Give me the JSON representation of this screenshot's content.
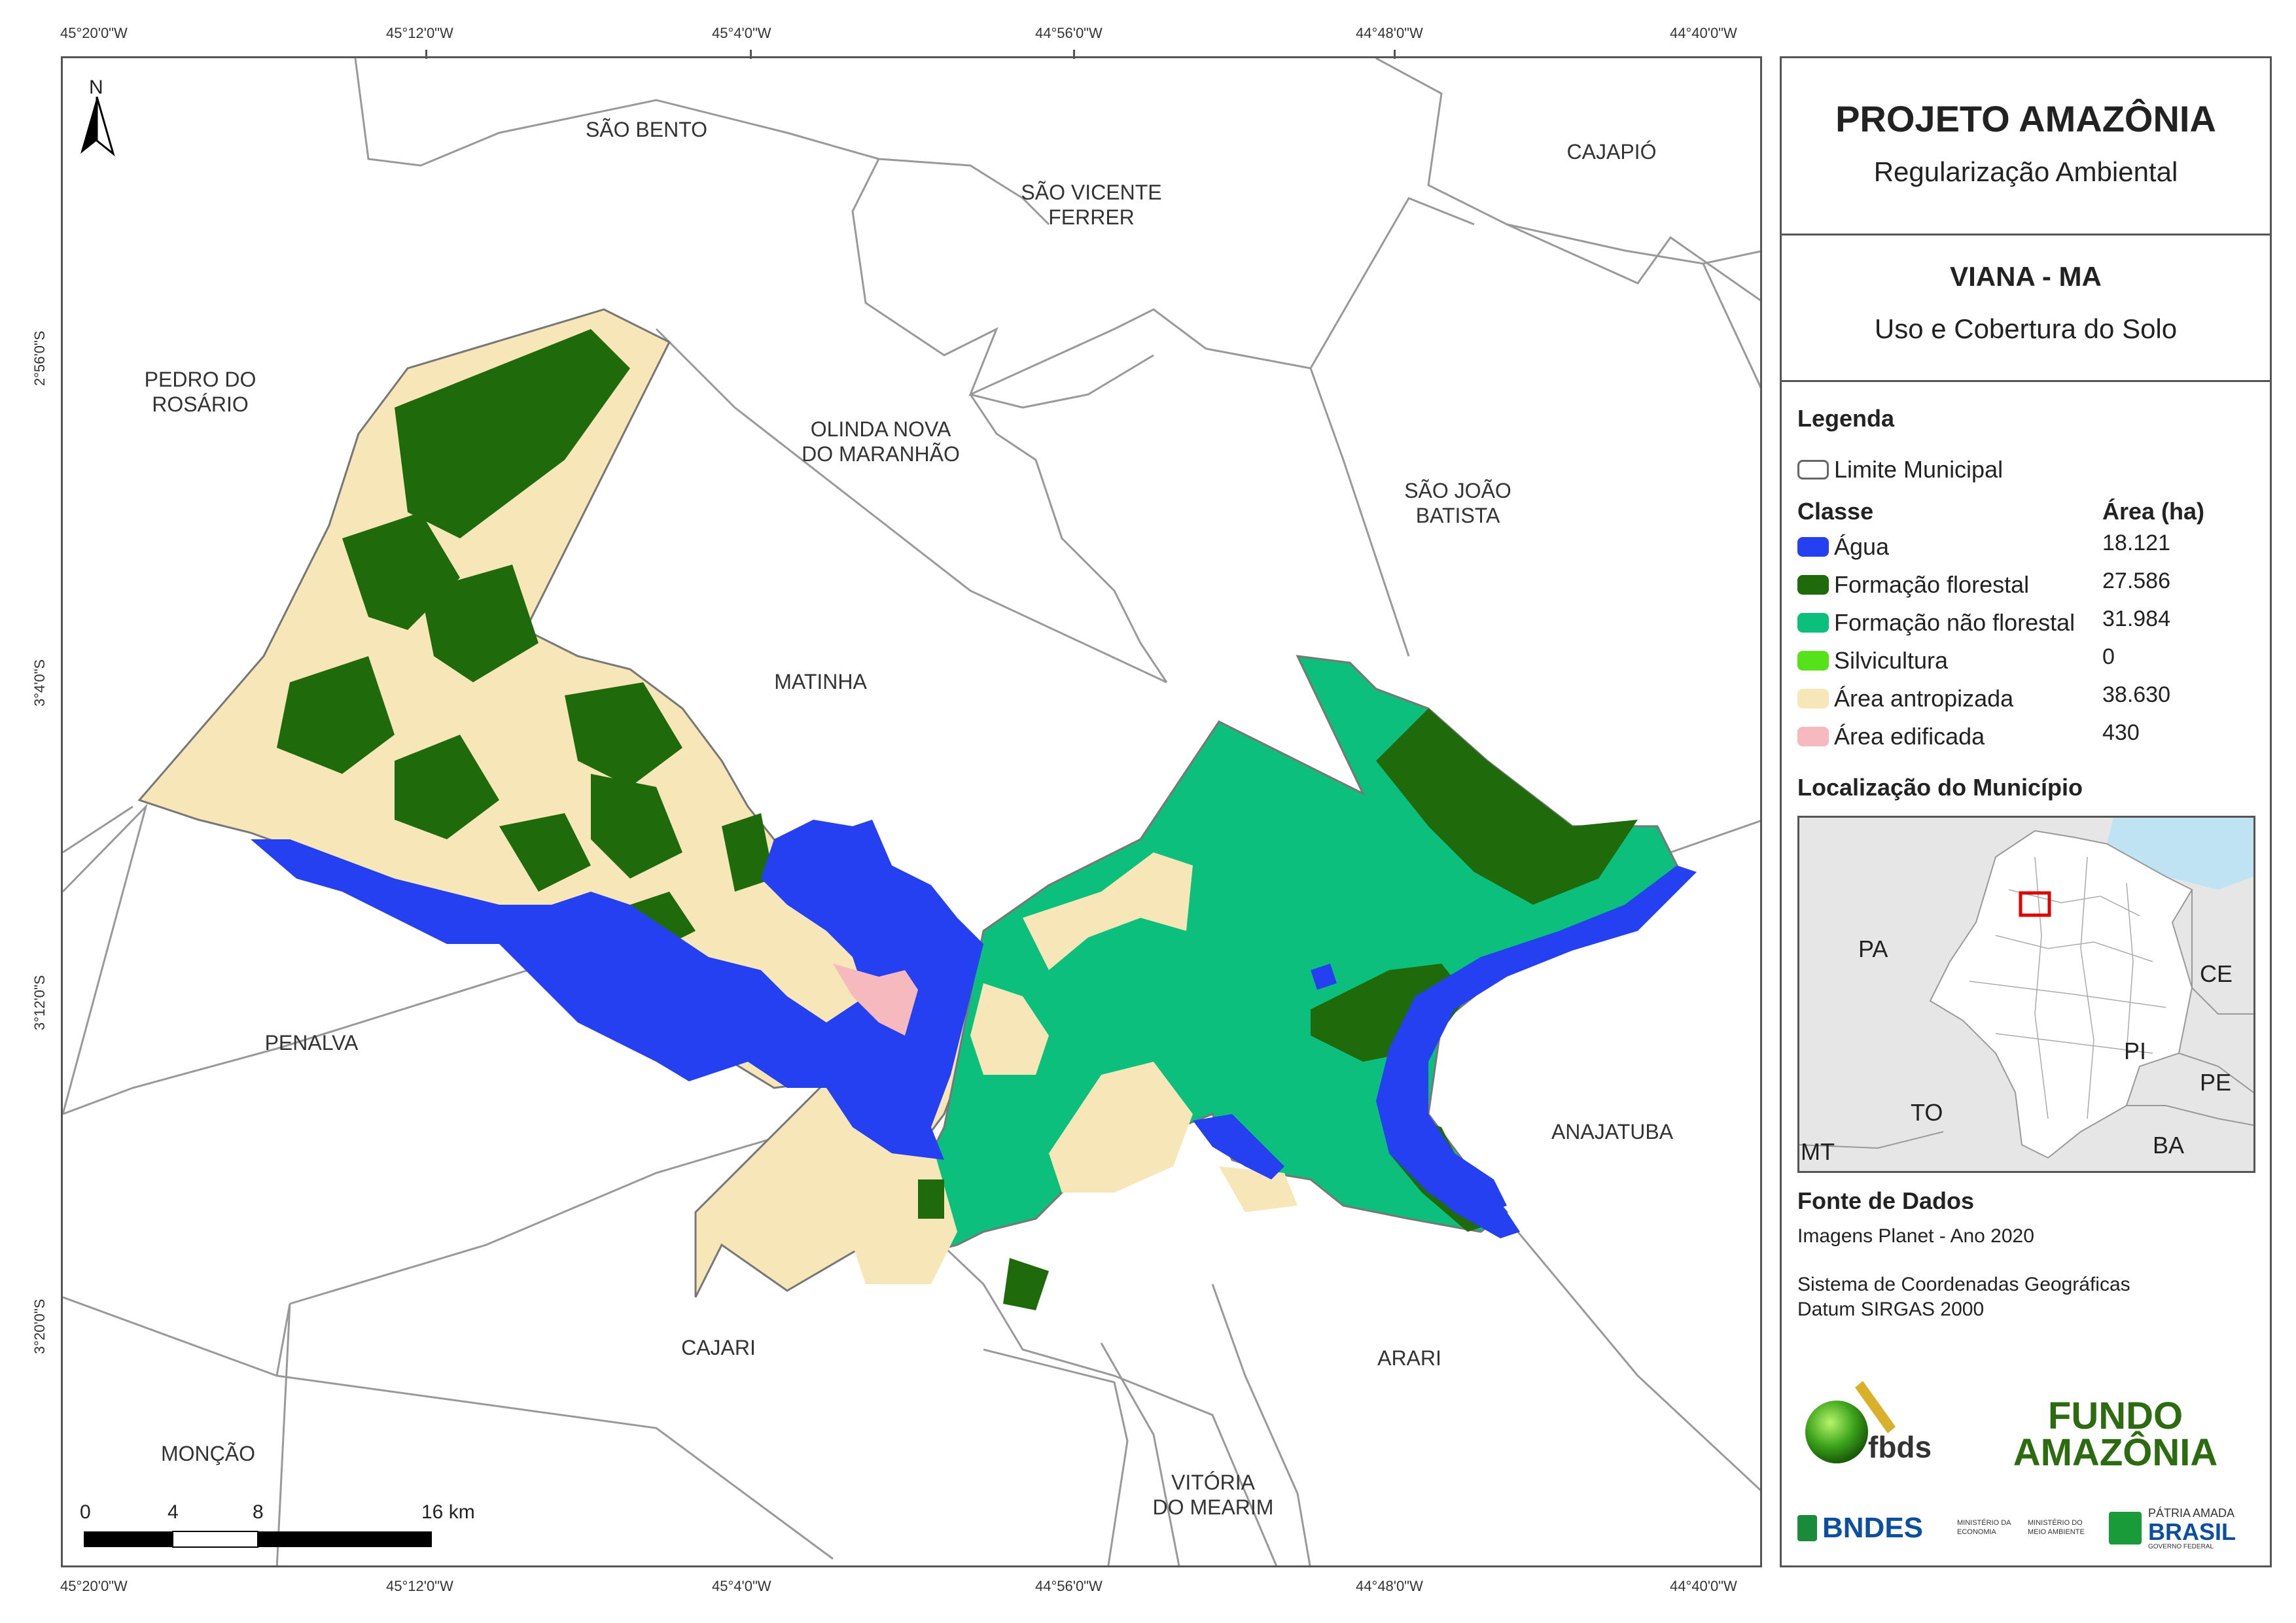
{
  "coords": {
    "top": [
      "45°20'0\"W",
      "45°12'0\"W",
      "45°4'0\"W",
      "44°56'0\"W",
      "44°48'0\"W",
      "44°40'0\"W"
    ],
    "bottom": [
      "45°20'0\"W",
      "45°12'0\"W",
      "45°4'0\"W",
      "44°56'0\"W",
      "44°48'0\"W",
      "44°40'0\"W"
    ],
    "left": [
      "2°56'0\"S",
      "3°4'0\"S",
      "3°12'0\"S",
      "3°20'0\"S"
    ]
  },
  "north_label": "N",
  "municipalities": {
    "sao_bento": "SÃO BENTO",
    "sao_vicente": "SÃO VICENTE\nFERRER",
    "cajapio": "CAJAPIÓ",
    "pedro_rosario": "PEDRO DO\nROSÁRIO",
    "olinda": "OLINDA NOVA\nDO MARANHÃO",
    "sao_joao": "SÃO JOÃO\nBATISTA",
    "matinha": "MATINHA",
    "penalva": "PENALVA",
    "anajatuba": "ANAJATUBA",
    "cajari": "CAJARI",
    "arari": "ARARI",
    "moncao": "MONÇÃO",
    "vitoria": "VITÓRIA\nDO MEARIM"
  },
  "scale_bar": {
    "labels": [
      "0",
      "4",
      "8",
      "16 km"
    ]
  },
  "panel": {
    "title": "PROJETO AMAZÔNIA",
    "subtitle": "Regularização Ambiental",
    "place": "VIANA - MA",
    "theme": "Uso e Cobertura do Solo",
    "legend_title": "Legenda",
    "boundary_label": "Limite Municipal",
    "class_header": "Classe",
    "area_header": "Área (ha)",
    "classes": [
      {
        "label": "Água",
        "area": "18.121",
        "color": "#2440f0"
      },
      {
        "label": "Formação florestal",
        "area": "27.586",
        "color": "#1f6b0c"
      },
      {
        "label": "Formação não florestal",
        "area": "31.984",
        "color": "#0cbf7c"
      },
      {
        "label": "Silvicultura",
        "area": "0",
        "color": "#56e11a"
      },
      {
        "label": "Área antropizada",
        "area": "38.630",
        "color": "#f7e6b8"
      },
      {
        "label": "Área edificada",
        "area": "430",
        "color": "#f6b9bd"
      }
    ],
    "location_title": "Localização do Município",
    "inset_labels": {
      "pa": "PA",
      "ce": "CE",
      "pi": "PI",
      "to": "TO",
      "pe": "PE",
      "ba": "BA",
      "mt": "MT"
    },
    "source_title": "Fonte de Dados",
    "source_line": "Imagens Planet - Ano 2020",
    "crs_line1": "Sistema de Coordenadas Geográficas",
    "crs_line2": "Datum SIRGAS 2000",
    "logos": {
      "fbds": "fbds",
      "fundo1": "FUNDO",
      "fundo2": "AMAZÔNIA",
      "bndes": "BNDES",
      "min_eco": "MINISTÉRIO DA ECONOMIA",
      "min_meio": "MINISTÉRIO DO MEIO AMBIENTE",
      "patria": "PÁTRIA AMADA",
      "brasil": "BRASIL",
      "gov": "GOVERNO FEDERAL"
    }
  }
}
